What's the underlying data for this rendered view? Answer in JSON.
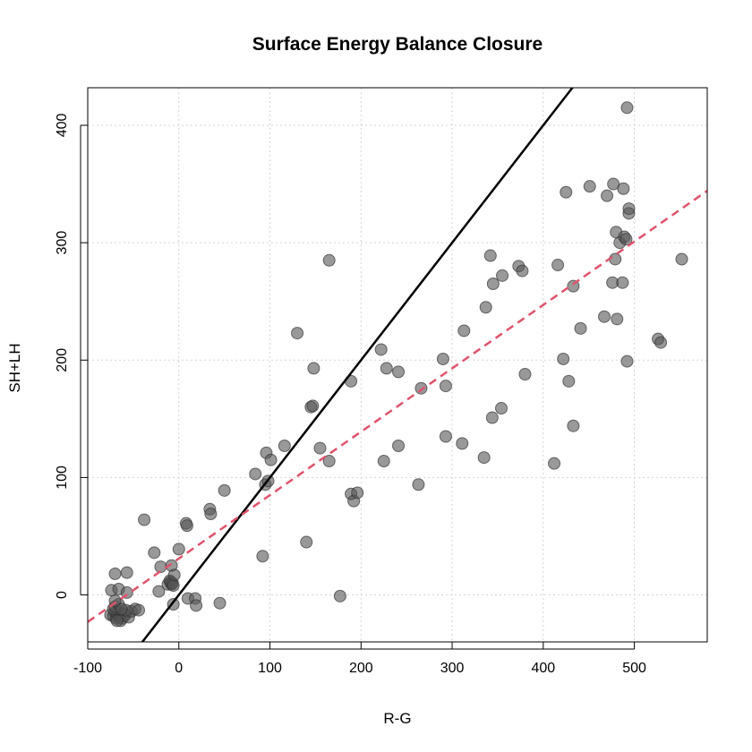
{
  "chart_data": {
    "type": "scatter",
    "title": "Surface Energy Balance Closure",
    "xlabel": "R-G",
    "ylabel": "SH+LH",
    "xlim": [
      -100,
      580
    ],
    "ylim": [
      -40,
      432
    ],
    "xticks": [
      -100,
      0,
      100,
      200,
      300,
      400,
      500
    ],
    "yticks": [
      0,
      100,
      200,
      300,
      400
    ],
    "grid": true,
    "point_color": "#555555",
    "points": [
      [
        -75,
        -17
      ],
      [
        -72,
        -18
      ],
      [
        -70,
        -15
      ],
      [
        -69,
        -20
      ],
      [
        -68,
        -16
      ],
      [
        -67,
        -14
      ],
      [
        -66,
        -18
      ],
      [
        -65,
        -19
      ],
      [
        -64,
        -17
      ],
      [
        -63,
        -16
      ],
      [
        -62,
        -20
      ],
      [
        -61,
        -15
      ],
      [
        -60,
        -18
      ],
      [
        -59,
        -17
      ],
      [
        -72,
        -12
      ],
      [
        -70,
        -10
      ],
      [
        -66,
        -8
      ],
      [
        -64,
        -22
      ],
      [
        -68,
        -22
      ],
      [
        -55,
        -19
      ],
      [
        -52,
        -14
      ],
      [
        -48,
        -12
      ],
      [
        -44,
        -13
      ],
      [
        -58,
        -13
      ],
      [
        -63,
        -12
      ],
      [
        -74,
        4
      ],
      [
        -70,
        -5
      ],
      [
        -66,
        5
      ],
      [
        -57,
        2
      ],
      [
        -70,
        18
      ],
      [
        -57,
        19
      ],
      [
        -38,
        64
      ],
      [
        -27,
        36
      ],
      [
        -20,
        24
      ],
      [
        -22,
        3
      ],
      [
        -12,
        9
      ],
      [
        -10,
        12
      ],
      [
        -8,
        9
      ],
      [
        -9,
        11
      ],
      [
        -7,
        10
      ],
      [
        -6,
        8
      ],
      [
        -8,
        25
      ],
      [
        -5,
        17
      ],
      [
        -6,
        -8
      ],
      [
        0,
        39
      ],
      [
        8,
        61
      ],
      [
        9,
        59
      ],
      [
        10,
        -3
      ],
      [
        18,
        -3
      ],
      [
        19,
        -9
      ],
      [
        34,
        73
      ],
      [
        35,
        69
      ],
      [
        45,
        -7
      ],
      [
        50,
        89
      ],
      [
        84,
        103
      ],
      [
        92,
        33
      ],
      [
        95,
        94
      ],
      [
        96,
        121
      ],
      [
        98,
        97
      ],
      [
        101,
        115
      ],
      [
        116,
        127
      ],
      [
        130,
        223
      ],
      [
        140,
        45
      ],
      [
        145,
        160
      ],
      [
        147,
        161
      ],
      [
        148,
        193
      ],
      [
        155,
        125
      ],
      [
        165,
        114
      ],
      [
        165,
        285
      ],
      [
        177,
        -1
      ],
      [
        189,
        182
      ],
      [
        189,
        86
      ],
      [
        192,
        80
      ],
      [
        196,
        87
      ],
      [
        222,
        209
      ],
      [
        225,
        114
      ],
      [
        228,
        193
      ],
      [
        241,
        190
      ],
      [
        241,
        127
      ],
      [
        263,
        94
      ],
      [
        266,
        176
      ],
      [
        290,
        201
      ],
      [
        293,
        178
      ],
      [
        293,
        135
      ],
      [
        311,
        129
      ],
      [
        313,
        225
      ],
      [
        335,
        117
      ],
      [
        337,
        245
      ],
      [
        342,
        289
      ],
      [
        344,
        151
      ],
      [
        345,
        265
      ],
      [
        354,
        159
      ],
      [
        355,
        272
      ],
      [
        373,
        280
      ],
      [
        377,
        276
      ],
      [
        380,
        188
      ],
      [
        412,
        112
      ],
      [
        416,
        281
      ],
      [
        422,
        201
      ],
      [
        425,
        343
      ],
      [
        428,
        182
      ],
      [
        433,
        263
      ],
      [
        433,
        144
      ],
      [
        441,
        227
      ],
      [
        451,
        348
      ],
      [
        467,
        237
      ],
      [
        470,
        340
      ],
      [
        476,
        266
      ],
      [
        477,
        350
      ],
      [
        479,
        286
      ],
      [
        480,
        309
      ],
      [
        481,
        235
      ],
      [
        484,
        300
      ],
      [
        487,
        266
      ],
      [
        488,
        346
      ],
      [
        489,
        305
      ],
      [
        491,
        303
      ],
      [
        492,
        199
      ],
      [
        492,
        415
      ],
      [
        494,
        325
      ],
      [
        494,
        329
      ],
      [
        526,
        218
      ],
      [
        529,
        215
      ],
      [
        552,
        286
      ]
    ],
    "lines": [
      {
        "type": "1:1",
        "intercept": 0,
        "slope": 1,
        "style": "solid",
        "color": "#000000"
      },
      {
        "type": "fit",
        "intercept": 31,
        "slope": 0.54,
        "style": "dashed",
        "color": "#DF536B"
      }
    ]
  }
}
